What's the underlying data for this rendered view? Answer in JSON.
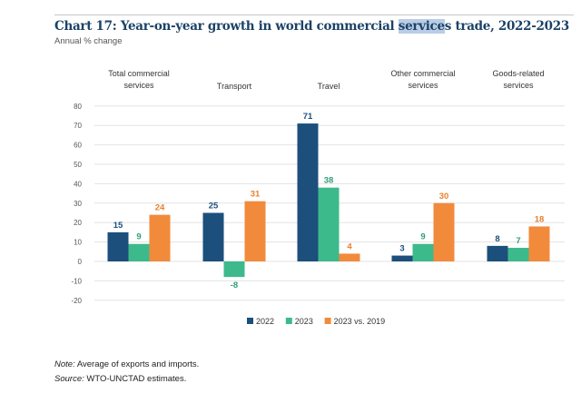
{
  "chart_data": {
    "type": "bar",
    "title_pre": "Chart 17: Year-on-year growth in world commercial ",
    "title_hl": "service",
    "title_post": "s trade, 2022-2023",
    "subtitle": "Annual % change",
    "categories": [
      [
        "Total commercial",
        "services"
      ],
      [
        "Transport"
      ],
      [
        "Travel"
      ],
      [
        "Other commercial",
        "services"
      ],
      [
        "Goods-related",
        "services"
      ]
    ],
    "series": [
      {
        "name": "2022",
        "color": "#1c4f7c",
        "values": [
          15,
          25,
          71,
          3,
          8
        ],
        "label_color": "#1c4f7c"
      },
      {
        "name": "2023",
        "color": "#3dba8b",
        "values": [
          9,
          -8,
          38,
          9,
          7
        ],
        "label_color": "#2e9e78"
      },
      {
        "name": "2023 vs. 2019",
        "color": "#f28a3b",
        "values": [
          24,
          31,
          4,
          30,
          18
        ],
        "label_color": "#e8802f"
      }
    ],
    "ylim": [
      -20,
      80
    ],
    "yticks": [
      80,
      70,
      60,
      50,
      40,
      30,
      20,
      10,
      0,
      -10,
      -20
    ],
    "legend": "bottom-center",
    "grid": true
  },
  "note_label": "Note:",
  "note_text": " Average of exports and imports.",
  "source_label": "Source:",
  "source_text": " WTO-UNCTAD estimates."
}
